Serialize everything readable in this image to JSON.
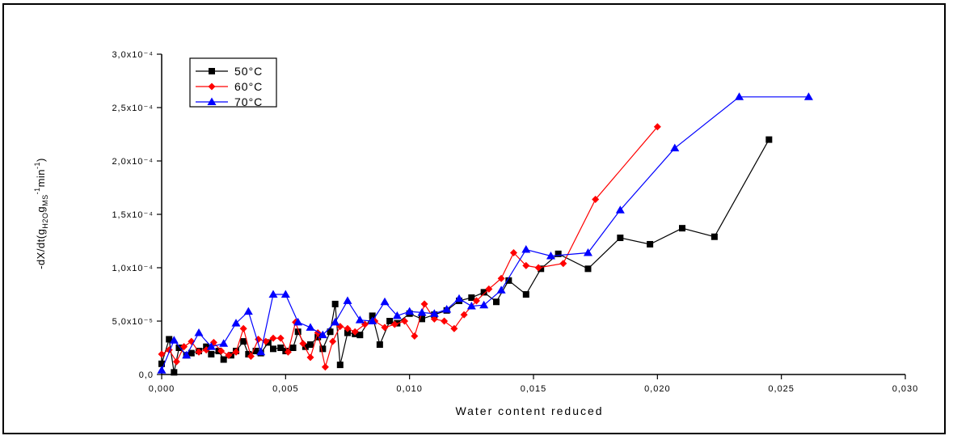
{
  "chart_data": {
    "type": "line",
    "xlabel": "Water content reduced",
    "ylabel": "-dX/dt(gH2O gMS-1 min-1)",
    "xlim": [
      0,
      0.03
    ],
    "ylim": [
      0,
      0.0003
    ],
    "x_ticks": [
      "0,000",
      "0,005",
      "0,010",
      "0,015",
      "0,020",
      "0,025",
      "0,030"
    ],
    "y_ticks": [
      "0,0",
      "5,0x10⁻⁵",
      "1,0x10⁻⁴",
      "1,5x10⁻⁴",
      "2,0x10⁻⁴",
      "2,5x10⁻⁴",
      "3,0x10⁻⁴"
    ],
    "grid": false,
    "legend": "top-left",
    "series": [
      {
        "name": "50°C",
        "color": "#000000",
        "marker": "square",
        "x": [
          0.0,
          0.0003,
          0.0005,
          0.0007,
          0.001,
          0.0012,
          0.0015,
          0.0018,
          0.002,
          0.0023,
          0.0025,
          0.0028,
          0.003,
          0.0033,
          0.0035,
          0.0038,
          0.004,
          0.0043,
          0.0045,
          0.0048,
          0.005,
          0.0053,
          0.0055,
          0.0058,
          0.006,
          0.0063,
          0.0065,
          0.0068,
          0.007,
          0.0072,
          0.0075,
          0.0078,
          0.008,
          0.0085,
          0.0088,
          0.0092,
          0.0095,
          0.01,
          0.0105,
          0.011,
          0.0115,
          0.012,
          0.0125,
          0.013,
          0.0135,
          0.014,
          0.0147,
          0.0153,
          0.016,
          0.0172,
          0.0185,
          0.0197,
          0.021,
          0.0223,
          0.0245
        ],
        "y": [
          1e-05,
          3.3e-05,
          2e-06,
          2.5e-05,
          1.8e-05,
          2e-05,
          2.2e-05,
          2.6e-05,
          1.9e-05,
          2.2e-05,
          1.4e-05,
          1.8e-05,
          2.2e-05,
          3.1e-05,
          1.9e-05,
          2.2e-05,
          2e-05,
          3e-05,
          2.4e-05,
          2.5e-05,
          2.2e-05,
          2.5e-05,
          4e-05,
          2.6e-05,
          2.8e-05,
          3.5e-05,
          2.4e-05,
          4e-05,
          6.6e-05,
          9e-06,
          3.9e-05,
          3.8e-05,
          3.7e-05,
          5.5e-05,
          2.8e-05,
          5e-05,
          4.8e-05,
          5.7e-05,
          5.2e-05,
          5.6e-05,
          6e-05,
          6.9e-05,
          7.2e-05,
          7.7e-05,
          6.8e-05,
          8.8e-05,
          7.5e-05,
          9.9e-05,
          0.000113,
          9.9e-05,
          0.000128,
          0.000122,
          0.000137,
          0.000129,
          0.00022
        ]
      },
      {
        "name": "60°C",
        "color": "#ff0000",
        "marker": "diamond",
        "x": [
          0.0,
          0.0003,
          0.0006,
          0.0009,
          0.0012,
          0.0015,
          0.0018,
          0.0021,
          0.0024,
          0.0027,
          0.003,
          0.0033,
          0.0036,
          0.0039,
          0.0042,
          0.0045,
          0.0048,
          0.0051,
          0.0054,
          0.0057,
          0.006,
          0.0063,
          0.0066,
          0.0069,
          0.0072,
          0.0075,
          0.0078,
          0.0082,
          0.0086,
          0.009,
          0.0094,
          0.0098,
          0.0102,
          0.0106,
          0.011,
          0.0114,
          0.0118,
          0.0122,
          0.0127,
          0.0132,
          0.0137,
          0.0142,
          0.0147,
          0.0152,
          0.0162,
          0.0175,
          0.02
        ],
        "y": [
          1.9e-05,
          2.3e-05,
          1.2e-05,
          2.6e-05,
          3.1e-05,
          2.1e-05,
          2.3e-05,
          3e-05,
          2.2e-05,
          1.8e-05,
          2.1e-05,
          4.3e-05,
          1.7e-05,
          3.3e-05,
          3.1e-05,
          3.4e-05,
          3.4e-05,
          2.1e-05,
          4.9e-05,
          2.9e-05,
          1.6e-05,
          3.9e-05,
          7e-06,
          3.1e-05,
          4.5e-05,
          4.3e-05,
          4e-05,
          4.7e-05,
          5e-05,
          4.4e-05,
          4.7e-05,
          5e-05,
          3.6e-05,
          6.6e-05,
          5.2e-05,
          5e-05,
          4.3e-05,
          5.6e-05,
          6.9e-05,
          8e-05,
          9e-05,
          0.000114,
          0.000102,
          0.0001,
          0.000104,
          0.000164,
          0.000232
        ]
      },
      {
        "name": "70°C",
        "color": "#0000ff",
        "marker": "triangle",
        "x": [
          0.0,
          0.0005,
          0.001,
          0.0015,
          0.002,
          0.0025,
          0.003,
          0.0035,
          0.004,
          0.0045,
          0.005,
          0.0055,
          0.006,
          0.0065,
          0.007,
          0.0075,
          0.008,
          0.0085,
          0.009,
          0.0095,
          0.01,
          0.0105,
          0.011,
          0.0115,
          0.012,
          0.0125,
          0.013,
          0.0137,
          0.0147,
          0.0157,
          0.0172,
          0.0185,
          0.0207,
          0.0233,
          0.0261
        ],
        "y": [
          4e-06,
          3.2e-05,
          1.8e-05,
          3.9e-05,
          2.6e-05,
          2.9e-05,
          4.8e-05,
          5.9e-05,
          2.1e-05,
          7.5e-05,
          7.5e-05,
          4.9e-05,
          4.4e-05,
          3.7e-05,
          4.9e-05,
          6.9e-05,
          5.1e-05,
          5e-05,
          6.8e-05,
          5.5e-05,
          5.9e-05,
          5.8e-05,
          5.7e-05,
          6.1e-05,
          7.1e-05,
          6.4e-05,
          6.5e-05,
          7.9e-05,
          0.000117,
          0.000111,
          0.000114,
          0.000154,
          0.000212,
          0.00026,
          0.00026
        ]
      }
    ]
  }
}
